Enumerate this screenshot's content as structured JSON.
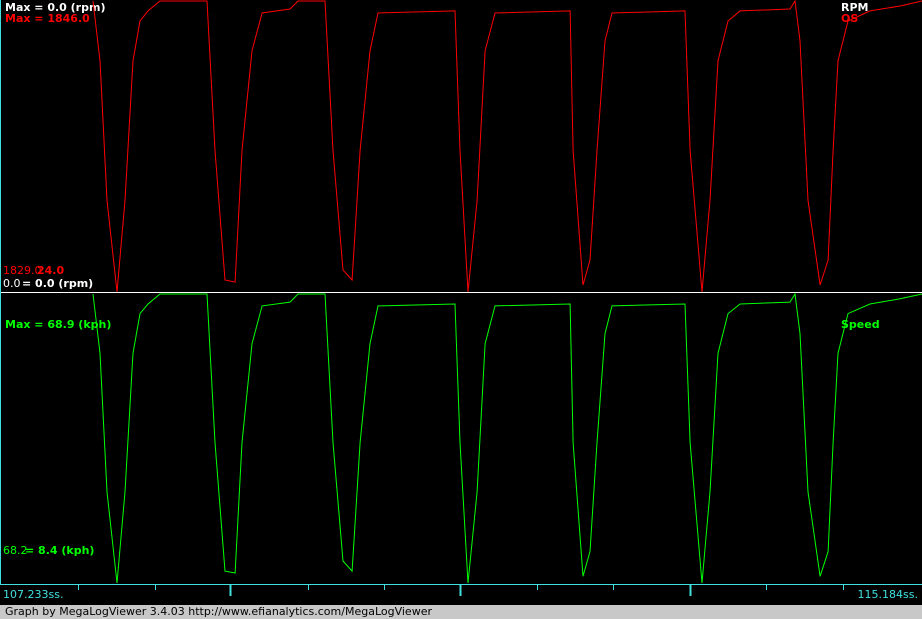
{
  "chart_data": [
    {
      "type": "line",
      "x": [
        108.035,
        108.095,
        108.156,
        108.242,
        108.311,
        108.38,
        108.44,
        108.509,
        108.613,
        109.018,
        109.087,
        109.173,
        109.26,
        109.32,
        109.406,
        109.493,
        109.734,
        109.803,
        110.036,
        110.105,
        110.191,
        110.269,
        110.338,
        110.424,
        110.493,
        111.157,
        111.2,
        111.269,
        111.347,
        111.416,
        111.502,
        112.149,
        112.175,
        112.261,
        112.321,
        112.381,
        112.45,
        112.511,
        113.14,
        113.184,
        113.287,
        113.356,
        113.425,
        113.511,
        113.615,
        114.046,
        114.089,
        114.132,
        114.201,
        114.305,
        114.374,
        114.417,
        114.46,
        114.546,
        114.736,
        114.995,
        115.184
      ],
      "xlim": [
        107.233,
        115.184
      ],
      "ylim": [
        24,
        1846
      ],
      "other_channel": {
        "name": "RPM",
        "color": "#ffffff",
        "max_label": "Max = 0.0 (rpm)",
        "min_value_label": "0.0",
        "min_label": "= 0.0 (rpm)"
      },
      "series": [
        {
          "name": "OS",
          "color": "#ff0000",
          "max_label": "Max = 1846.0",
          "min_value_label": "1829.0",
          "min_label": "24.0",
          "values": [
            1846,
            1472,
            598,
            24,
            598,
            1472,
            1721,
            1784,
            1846,
            1846,
            910,
            99,
            86,
            910,
            1534,
            1771,
            1796,
            1846,
            1846,
            910,
            161,
            99,
            910,
            1534,
            1771,
            1784,
            910,
            24,
            598,
            1534,
            1771,
            1784,
            910,
            68,
            224,
            910,
            1596,
            1771,
            1784,
            910,
            24,
            598,
            1472,
            1721,
            1784,
            1796,
            1846,
            1596,
            598,
            68,
            224,
            910,
            1472,
            1721,
            1784,
            1815,
            1846
          ]
        }
      ]
    },
    {
      "type": "line",
      "x": [
        108.035,
        108.095,
        108.156,
        108.242,
        108.311,
        108.38,
        108.44,
        108.509,
        108.613,
        109.018,
        109.087,
        109.173,
        109.26,
        109.32,
        109.406,
        109.493,
        109.734,
        109.803,
        110.036,
        110.105,
        110.191,
        110.269,
        110.338,
        110.424,
        110.493,
        111.157,
        111.2,
        111.269,
        111.347,
        111.416,
        111.502,
        112.149,
        112.175,
        112.261,
        112.321,
        112.381,
        112.45,
        112.511,
        113.14,
        113.184,
        113.287,
        113.356,
        113.425,
        113.511,
        113.615,
        114.046,
        114.089,
        114.132,
        114.201,
        114.305,
        114.374,
        114.417,
        114.46,
        114.546,
        114.736,
        114.995,
        115.184
      ],
      "xlim": [
        107.233,
        115.184
      ],
      "ylim": [
        8.4,
        68.9
      ],
      "series": [
        {
          "name": "Speed",
          "color": "#00ff00",
          "max_label": "Max = 68.9 (kph)",
          "min_value_label": "68.2",
          "min_label": "= 8.4 (kph)",
          "values": [
            68.9,
            56.5,
            27.5,
            8.4,
            27.5,
            56.5,
            64.8,
            66.8,
            68.9,
            68.9,
            37.8,
            10.9,
            10.5,
            37.8,
            58.5,
            66.4,
            67.2,
            68.9,
            68.9,
            37.8,
            13.0,
            10.9,
            37.8,
            58.5,
            66.4,
            66.8,
            37.8,
            8.4,
            27.5,
            58.5,
            66.4,
            66.8,
            37.8,
            9.8,
            15.0,
            37.8,
            60.6,
            66.4,
            66.8,
            37.8,
            8.4,
            27.5,
            56.5,
            64.8,
            66.8,
            67.2,
            68.9,
            60.6,
            27.5,
            9.8,
            15.0,
            37.8,
            56.5,
            64.8,
            66.8,
            67.9,
            68.9
          ]
        }
      ]
    }
  ],
  "time_axis": {
    "xlim": [
      107.233,
      115.184
    ],
    "start_label": "107.233ss.",
    "end_label": "115.184ss.",
    "xticks": [
      107.906,
      108.57,
      109.217,
      109.889,
      110.545,
      111.2,
      111.864,
      112.52,
      113.184,
      113.839,
      114.503
    ]
  },
  "footer": "Graph by MegaLogViewer 3.4.03 http://www.efianalytics.com/MegaLogViewer"
}
